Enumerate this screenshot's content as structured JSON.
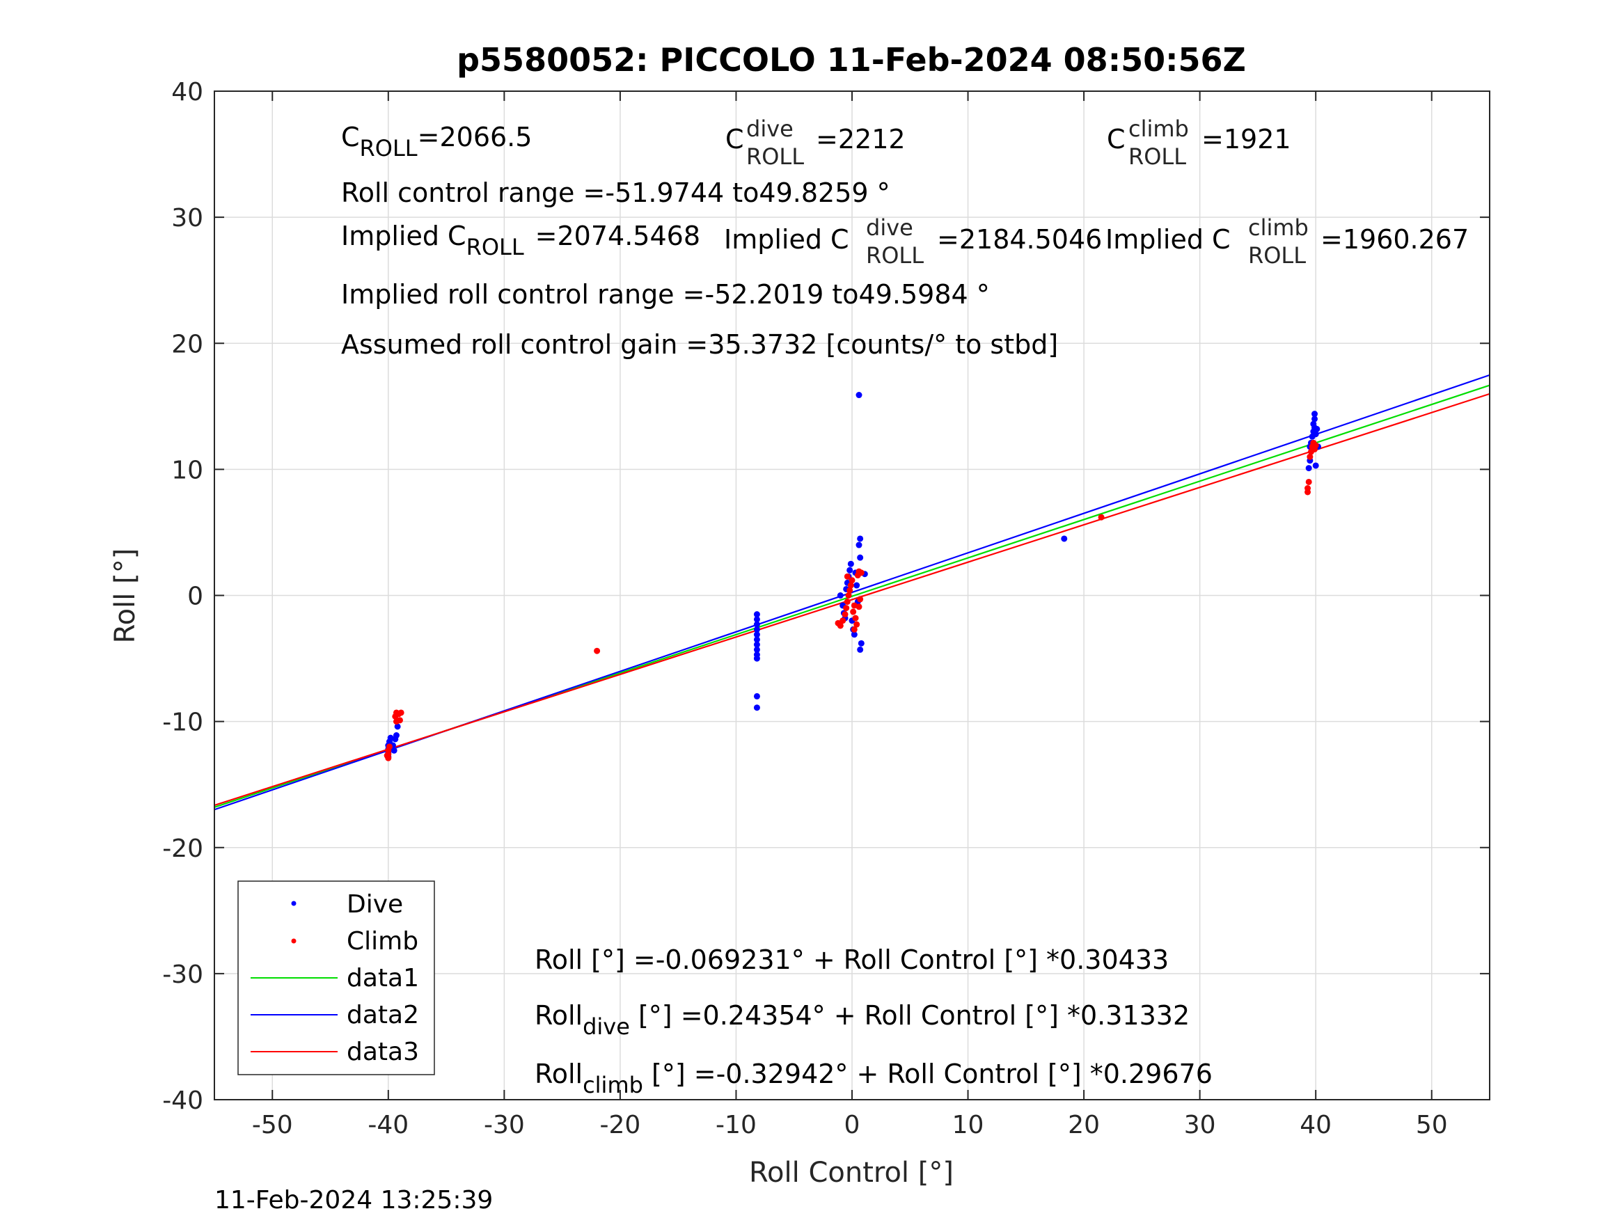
{
  "chart_data": {
    "type": "scatter",
    "title": "p5580052: PICCOLO 11-Feb-2024 08:50:56Z",
    "xlabel": "Roll Control [°]",
    "ylabel": "Roll [°]",
    "xlim": [
      -55,
      55
    ],
    "ylim": [
      -40,
      40
    ],
    "xticks": [
      -50,
      -40,
      -30,
      -20,
      -10,
      0,
      10,
      20,
      30,
      40,
      50
    ],
    "yticks": [
      -40,
      -30,
      -20,
      -10,
      0,
      10,
      20,
      30,
      40
    ],
    "grid": true,
    "legend_position": "bottom-left",
    "series": [
      {
        "name": "Dive",
        "kind": "scatter",
        "color": "#0000ff",
        "points": [
          [
            -40.0,
            -12.8
          ],
          [
            -40.0,
            -12.5
          ],
          [
            -40.0,
            -12.2
          ],
          [
            -40.0,
            -11.9
          ],
          [
            -39.9,
            -11.6
          ],
          [
            -39.8,
            -11.3
          ],
          [
            -39.6,
            -11.9
          ],
          [
            -39.4,
            -11.4
          ],
          [
            -39.3,
            -11.1
          ],
          [
            -39.2,
            -10.4
          ],
          [
            -39.5,
            -12.3
          ],
          [
            -8.2,
            -1.5
          ],
          [
            -8.2,
            -1.9
          ],
          [
            -8.2,
            -2.3
          ],
          [
            -8.2,
            -2.7
          ],
          [
            -8.2,
            -3.1
          ],
          [
            -8.2,
            -3.5
          ],
          [
            -8.2,
            -3.9
          ],
          [
            -8.2,
            -4.3
          ],
          [
            -8.2,
            -4.7
          ],
          [
            -8.2,
            -5.0
          ],
          [
            -8.2,
            -8.0
          ],
          [
            -8.2,
            -8.9
          ],
          [
            -1.0,
            0.0
          ],
          [
            -0.8,
            -0.8
          ],
          [
            -0.7,
            -1.4
          ],
          [
            -0.6,
            -1.8
          ],
          [
            -0.5,
            0.5
          ],
          [
            -0.4,
            1.0
          ],
          [
            -0.3,
            1.5
          ],
          [
            -0.2,
            2.0
          ],
          [
            -0.1,
            2.5
          ],
          [
            0.0,
            -2.0
          ],
          [
            0.1,
            -2.7
          ],
          [
            0.2,
            -3.1
          ],
          [
            0.3,
            1.8
          ],
          [
            0.4,
            0.8
          ],
          [
            0.5,
            -0.5
          ],
          [
            0.6,
            4.0
          ],
          [
            0.7,
            4.5
          ],
          [
            0.7,
            3.0
          ],
          [
            0.8,
            -3.8
          ],
          [
            0.7,
            -4.3
          ],
          [
            1.1,
            1.7
          ],
          [
            0.6,
            15.9
          ],
          [
            18.3,
            4.5
          ],
          [
            39.4,
            10.1
          ],
          [
            39.5,
            10.7
          ],
          [
            39.5,
            11.8
          ],
          [
            39.6,
            12.1
          ],
          [
            39.7,
            12.6
          ],
          [
            39.8,
            13.0
          ],
          [
            39.9,
            13.3
          ],
          [
            39.8,
            13.6
          ],
          [
            39.9,
            14.0
          ],
          [
            39.9,
            14.4
          ],
          [
            40.0,
            12.8
          ],
          [
            40.1,
            13.2
          ],
          [
            40.2,
            11.8
          ],
          [
            40.0,
            10.3
          ]
        ]
      },
      {
        "name": "Climb",
        "kind": "scatter",
        "color": "#ff0000",
        "points": [
          [
            -40.0,
            -12.9
          ],
          [
            -40.0,
            -12.6
          ],
          [
            -40.0,
            -12.3
          ],
          [
            -39.9,
            -12.0
          ],
          [
            -40.1,
            -12.7
          ],
          [
            -39.4,
            -9.6
          ],
          [
            -39.3,
            -9.3
          ],
          [
            -39.1,
            -9.4
          ],
          [
            -38.9,
            -9.3
          ],
          [
            -39.0,
            -9.9
          ],
          [
            -39.3,
            -10.0
          ],
          [
            -22.0,
            -4.4
          ],
          [
            -1.2,
            -2.2
          ],
          [
            -1.0,
            -2.4
          ],
          [
            -0.8,
            -2.0
          ],
          [
            -0.6,
            -1.5
          ],
          [
            -0.5,
            -1.0
          ],
          [
            -0.4,
            -0.5
          ],
          [
            -0.3,
            0.0
          ],
          [
            -0.2,
            0.4
          ],
          [
            -0.1,
            0.8
          ],
          [
            0.0,
            1.2
          ],
          [
            0.1,
            -1.3
          ],
          [
            0.2,
            -0.8
          ],
          [
            0.3,
            -1.8
          ],
          [
            0.4,
            -2.3
          ],
          [
            0.5,
            1.6
          ],
          [
            0.6,
            1.9
          ],
          [
            0.7,
            -0.3
          ],
          [
            0.8,
            1.8
          ],
          [
            0.2,
            -2.7
          ],
          [
            -0.4,
            1.5
          ],
          [
            0.6,
            -0.9
          ],
          [
            21.5,
            6.2
          ],
          [
            39.3,
            8.5
          ],
          [
            39.3,
            8.2
          ],
          [
            39.4,
            9.0
          ],
          [
            39.5,
            11.0
          ],
          [
            39.6,
            11.4
          ],
          [
            39.7,
            11.8
          ],
          [
            39.8,
            12.1
          ],
          [
            39.9,
            11.6
          ],
          [
            40.0,
            11.9
          ]
        ]
      },
      {
        "name": "data1",
        "kind": "line",
        "color": "#00dd00",
        "x": [
          -55,
          55
        ],
        "y": [
          -16.8,
          16.67
        ]
      },
      {
        "name": "data2",
        "kind": "line",
        "color": "#0000ff",
        "x": [
          -55,
          55
        ],
        "y": [
          -16.99,
          17.48
        ]
      },
      {
        "name": "data3",
        "kind": "line",
        "color": "#ff0000",
        "x": [
          -55,
          55
        ],
        "y": [
          -16.65,
          15.99
        ]
      }
    ],
    "annotations": {
      "c_roll": {
        "main": "C",
        "sub": "ROLL",
        "rest": "=2066.5"
      },
      "c_roll_dive": {
        "main": "C",
        "sup": "dive",
        "sub": "ROLL",
        "rest": "=2212"
      },
      "c_roll_climb": {
        "main": "C",
        "sup": "climb",
        "sub": "ROLL",
        "rest": "=1921"
      },
      "range_line": "Roll control range =-51.9744 to49.8259 °",
      "implied_c_roll": {
        "main": "Implied C",
        "sub": "ROLL",
        "rest": "=2074.5468"
      },
      "implied_c_roll_dive": {
        "main": "Implied C",
        "sup": "dive",
        "sub": "ROLL",
        "rest": "=2184.5046"
      },
      "implied_c_roll_climb": {
        "main": "Implied C",
        "sup": "climb",
        "sub": "ROLL",
        "rest": "=1960.267"
      },
      "implied_range_line": "Implied roll control range =-52.2019 to49.5984 °",
      "gain_line": "Assumed roll control gain =35.3732 [counts/° to stbd]",
      "fit_all": "Roll [°] =-0.069231° + Roll Control [°] *0.30433",
      "fit_dive": {
        "main": "Roll",
        "sub": "dive",
        "rest": " [°] =0.24354° + Roll Control [°] *0.31332"
      },
      "fit_climb": {
        "main": "Roll",
        "sub": "climb",
        "rest": " [°] =-0.32942° + Roll Control [°] *0.29676"
      }
    }
  },
  "timestamp": "11-Feb-2024 13:25:39"
}
